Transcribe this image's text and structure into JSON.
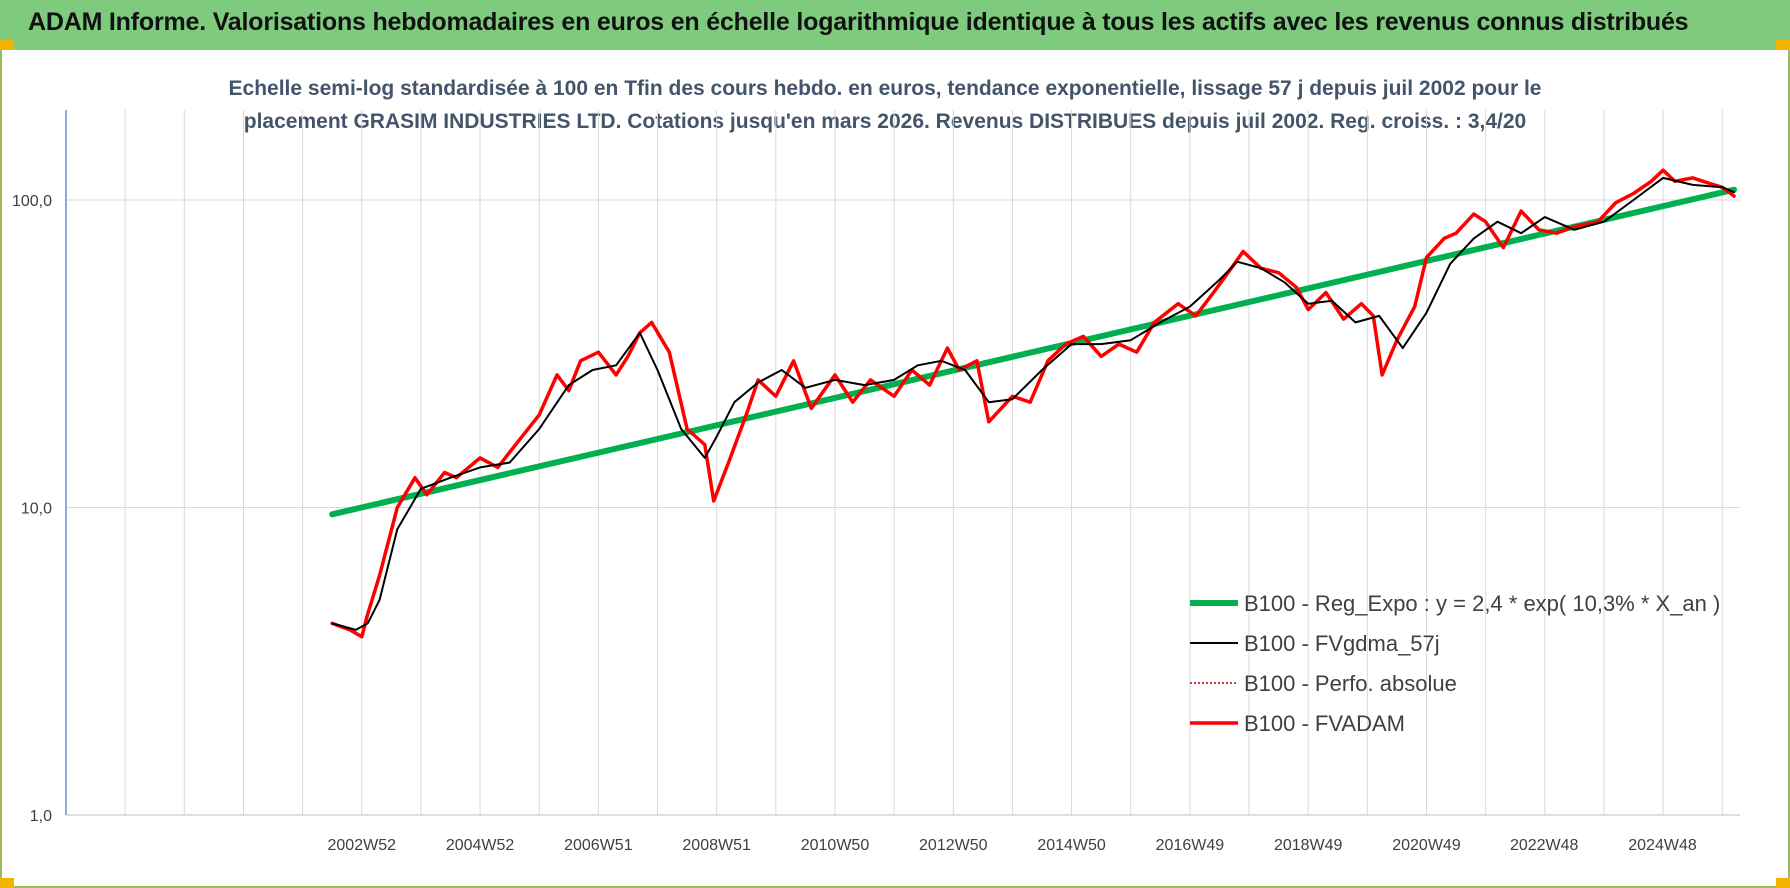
{
  "banner": {
    "title": "ADAM Informe. Valorisations hebdomadaires en euros en échelle logarithmique identique à tous les actifs avec les revenus connus distribués"
  },
  "colors": {
    "banner_bg": "#7ecb7e",
    "regression": "#00b050",
    "smoothed": "#000000",
    "absolute": "#c00000",
    "fvadam": "#ff0000",
    "title_text": "#44546a"
  },
  "chart_data": {
    "type": "line",
    "title_line1": "Echelle semi-log standardisée à 100 en Tfin des cours hebdo. en euros, tendance exponentielle, lissage 57 j depuis juil 2002 pour le",
    "title_line2": "placement GRASIM INDUSTRIES LTD. Cotations jusqu'en mars 2026. Revenus DISTRIBUES depuis juil 2002. Reg. croiss. : 3,4/20",
    "y_scale": "log",
    "ylim": [
      1,
      200
    ],
    "y_ticks": [
      {
        "value": 1,
        "label": "1,0"
      },
      {
        "value": 10,
        "label": "10,0"
      },
      {
        "value": 100,
        "label": "100,0"
      }
    ],
    "xlim": [
      1998.0,
      2026.3
    ],
    "x_tick_labels": [
      {
        "x": 2003.0,
        "label": "2002W52"
      },
      {
        "x": 2005.0,
        "label": "2004W52"
      },
      {
        "x": 2007.0,
        "label": "2006W51"
      },
      {
        "x": 2009.0,
        "label": "2008W51"
      },
      {
        "x": 2011.0,
        "label": "2010W50"
      },
      {
        "x": 2013.0,
        "label": "2012W50"
      },
      {
        "x": 2015.0,
        "label": "2014W50"
      },
      {
        "x": 2017.0,
        "label": "2016W49"
      },
      {
        "x": 2019.0,
        "label": "2018W49"
      },
      {
        "x": 2021.0,
        "label": "2020W49"
      },
      {
        "x": 2022.99,
        "label": "2022W48"
      },
      {
        "x": 2024.99,
        "label": "2024W48"
      }
    ],
    "grid": "vertical lines every year, horizontal at major ticks",
    "legend_position": "right, lower half",
    "series": [
      {
        "name": "B100 - Reg_Expo : y = 2,4 * exp( 10,3% *  X_an )",
        "style": "thick green",
        "x": [
          2002.5,
          2026.2
        ],
        "y": [
          9.5,
          108
        ]
      },
      {
        "name": "B100 - FVgdma_57j",
        "style": "thin black",
        "x": [
          2002.5,
          2002.9,
          2003.1,
          2003.3,
          2003.6,
          2004.0,
          2004.5,
          2005.0,
          2005.5,
          2006.0,
          2006.5,
          2006.9,
          2007.3,
          2007.7,
          2008.0,
          2008.4,
          2008.8,
          2009.0,
          2009.3,
          2009.7,
          2010.1,
          2010.5,
          2011.0,
          2011.5,
          2012.0,
          2012.4,
          2012.8,
          2013.2,
          2013.6,
          2014.0,
          2014.5,
          2015.0,
          2015.5,
          2016.0,
          2016.5,
          2017.0,
          2017.5,
          2017.8,
          2018.2,
          2018.6,
          2019.0,
          2019.4,
          2019.8,
          2020.2,
          2020.6,
          2021.0,
          2021.4,
          2021.8,
          2022.2,
          2022.6,
          2023.0,
          2023.5,
          2024.0,
          2024.5,
          2025.0,
          2025.5,
          2026.0,
          2026.2
        ],
        "y": [
          4.2,
          4.0,
          4.2,
          5.0,
          8.5,
          11.5,
          12.5,
          13.5,
          14.0,
          18.0,
          25.0,
          28.0,
          29.0,
          37.0,
          28.0,
          18.0,
          14.5,
          17.0,
          22.0,
          25.5,
          28.0,
          24.5,
          26.0,
          25.0,
          26.0,
          29.0,
          30.0,
          28.0,
          22.0,
          22.5,
          28.0,
          34.0,
          34.0,
          35.0,
          40.0,
          45.0,
          55.0,
          63.0,
          60.0,
          54.0,
          46.0,
          47.0,
          40.0,
          42.0,
          33.0,
          43.0,
          62.0,
          75.0,
          85.0,
          78.0,
          88.0,
          80.0,
          85.0,
          100.0,
          118.0,
          112.0,
          110.0,
          106.0
        ]
      },
      {
        "name": "B100 - Perfo. absolue",
        "style": "dotted dark red",
        "x": [
          2002.5,
          2002.8,
          2003.0,
          2003.1,
          2003.3,
          2003.6,
          2003.9,
          2004.1,
          2004.4,
          2004.6,
          2005.0,
          2005.3,
          2005.6,
          2006.0,
          2006.3,
          2006.5,
          2006.7,
          2007.0,
          2007.3,
          2007.5,
          2007.7,
          2007.9,
          2008.2,
          2008.5,
          2008.8,
          2008.95,
          2009.2,
          2009.5,
          2009.7,
          2010.0,
          2010.3,
          2010.6,
          2011.0,
          2011.3,
          2011.6,
          2012.0,
          2012.3,
          2012.6,
          2012.9,
          2013.1,
          2013.4,
          2013.6,
          2014.0,
          2014.3,
          2014.6,
          2014.9,
          2015.2,
          2015.5,
          2015.8,
          2016.1,
          2016.4,
          2016.8,
          2017.1,
          2017.4,
          2017.7,
          2017.9,
          2018.2,
          2018.5,
          2018.8,
          2019.0,
          2019.3,
          2019.6,
          2019.9,
          2020.1,
          2020.25,
          2020.5,
          2020.8,
          2021.0,
          2021.3,
          2021.5,
          2021.8,
          2022.0,
          2022.3,
          2022.6,
          2022.9,
          2023.2,
          2023.5,
          2023.9,
          2024.2,
          2024.5,
          2024.8,
          2025.0,
          2025.2,
          2025.5,
          2025.8,
          2026.0,
          2026.2
        ],
        "y": [
          4.2,
          4.0,
          3.8,
          4.5,
          6.0,
          10.0,
          12.5,
          11.0,
          13.0,
          12.5,
          14.5,
          13.5,
          16.0,
          20.0,
          27.0,
          24.0,
          30.0,
          32.0,
          27.0,
          31.0,
          37.0,
          40.0,
          32.0,
          18.0,
          16.0,
          10.5,
          14.0,
          20.0,
          26.0,
          23.0,
          30.0,
          21.0,
          27.0,
          22.0,
          26.0,
          23.0,
          28.0,
          25.0,
          33.0,
          28.0,
          30.0,
          19.0,
          23.0,
          22.0,
          30.0,
          34.0,
          36.0,
          31.0,
          34.0,
          32.0,
          40.0,
          46.0,
          42.0,
          50.0,
          60.0,
          68.0,
          60.0,
          58.0,
          52.0,
          44.0,
          50.0,
          41.0,
          46.0,
          42.0,
          27.0,
          35.0,
          45.0,
          65.0,
          75.0,
          78.0,
          90.0,
          85.0,
          70.0,
          92.0,
          80.0,
          78.0,
          82.0,
          85.0,
          98.0,
          105.0,
          115.0,
          125.0,
          115.0,
          118.0,
          113.0,
          110.0,
          103.0
        ]
      },
      {
        "name": "B100 - FVADAM",
        "style": "thick red",
        "x": [
          2002.5,
          2002.8,
          2003.0,
          2003.1,
          2003.3,
          2003.6,
          2003.9,
          2004.1,
          2004.4,
          2004.6,
          2005.0,
          2005.3,
          2005.6,
          2006.0,
          2006.3,
          2006.5,
          2006.7,
          2007.0,
          2007.3,
          2007.5,
          2007.7,
          2007.9,
          2008.2,
          2008.5,
          2008.8,
          2008.95,
          2009.2,
          2009.5,
          2009.7,
          2010.0,
          2010.3,
          2010.6,
          2011.0,
          2011.3,
          2011.6,
          2012.0,
          2012.3,
          2012.6,
          2012.9,
          2013.1,
          2013.4,
          2013.6,
          2014.0,
          2014.3,
          2014.6,
          2014.9,
          2015.2,
          2015.5,
          2015.8,
          2016.1,
          2016.4,
          2016.8,
          2017.1,
          2017.4,
          2017.7,
          2017.9,
          2018.2,
          2018.5,
          2018.8,
          2019.0,
          2019.3,
          2019.6,
          2019.9,
          2020.1,
          2020.25,
          2020.5,
          2020.8,
          2021.0,
          2021.3,
          2021.5,
          2021.8,
          2022.0,
          2022.3,
          2022.6,
          2022.9,
          2023.2,
          2023.5,
          2023.9,
          2024.2,
          2024.5,
          2024.8,
          2025.0,
          2025.2,
          2025.5,
          2025.8,
          2026.0,
          2026.2
        ],
        "y": [
          4.2,
          4.0,
          3.8,
          4.5,
          6.0,
          10.0,
          12.5,
          11.0,
          13.0,
          12.5,
          14.5,
          13.5,
          16.0,
          20.0,
          27.0,
          24.0,
          30.0,
          32.0,
          27.0,
          31.0,
          37.0,
          40.0,
          32.0,
          18.0,
          16.0,
          10.5,
          14.0,
          20.0,
          26.0,
          23.0,
          30.0,
          21.0,
          27.0,
          22.0,
          26.0,
          23.0,
          28.0,
          25.0,
          33.0,
          28.0,
          30.0,
          19.0,
          23.0,
          22.0,
          30.0,
          34.0,
          36.0,
          31.0,
          34.0,
          32.0,
          40.0,
          46.0,
          42.0,
          50.0,
          60.0,
          68.0,
          60.0,
          58.0,
          52.0,
          44.0,
          50.0,
          41.0,
          46.0,
          42.0,
          27.0,
          35.0,
          45.0,
          65.0,
          75.0,
          78.0,
          90.0,
          85.0,
          70.0,
          92.0,
          80.0,
          78.0,
          82.0,
          85.0,
          98.0,
          105.0,
          115.0,
          125.0,
          115.0,
          118.0,
          113.0,
          110.0,
          103.0
        ]
      }
    ]
  }
}
